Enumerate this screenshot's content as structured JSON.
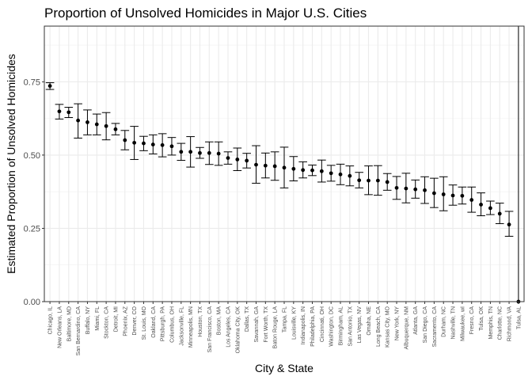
{
  "chart_data": {
    "type": "scatter",
    "title": "Proportion of Unsolved Homicides in Major U.S. Cities",
    "xlabel": "City & State",
    "ylabel": "Estimated Proportion of Unsolved Homicides",
    "ylim": [
      0,
      0.94
    ],
    "yticks": [
      0.0,
      0.25,
      0.5,
      0.75
    ],
    "ytick_labels": [
      "0.00",
      "0.25",
      "0.50",
      "0.75"
    ],
    "grid": true,
    "error_bars": true,
    "points": [
      {
        "city": "Chicago, IL",
        "estimate": 0.736,
        "lower": 0.724,
        "upper": 0.747
      },
      {
        "city": "New Orleans, LA",
        "estimate": 0.649,
        "lower": 0.623,
        "upper": 0.673
      },
      {
        "city": "Baltimore, MD",
        "estimate": 0.646,
        "lower": 0.628,
        "upper": 0.663
      },
      {
        "city": "San Bernardino, CA",
        "estimate": 0.618,
        "lower": 0.558,
        "upper": 0.675
      },
      {
        "city": "Buffalo, NY",
        "estimate": 0.612,
        "lower": 0.569,
        "upper": 0.654
      },
      {
        "city": "Miami, FL",
        "estimate": 0.605,
        "lower": 0.569,
        "upper": 0.64
      },
      {
        "city": "Stockton, CA",
        "estimate": 0.599,
        "lower": 0.552,
        "upper": 0.645
      },
      {
        "city": "Detroit, MI",
        "estimate": 0.588,
        "lower": 0.569,
        "upper": 0.608
      },
      {
        "city": "Phoenix, AZ",
        "estimate": 0.551,
        "lower": 0.518,
        "upper": 0.584
      },
      {
        "city": "Denver, CO",
        "estimate": 0.542,
        "lower": 0.485,
        "upper": 0.598
      },
      {
        "city": "St. Louis, MO",
        "estimate": 0.54,
        "lower": 0.515,
        "upper": 0.564
      },
      {
        "city": "Oakland, CA",
        "estimate": 0.536,
        "lower": 0.504,
        "upper": 0.569
      },
      {
        "city": "Pittsburgh, PA",
        "estimate": 0.534,
        "lower": 0.494,
        "upper": 0.573
      },
      {
        "city": "Columbus, OH",
        "estimate": 0.53,
        "lower": 0.5,
        "upper": 0.56
      },
      {
        "city": "Jacksonville, FL",
        "estimate": 0.511,
        "lower": 0.482,
        "upper": 0.54
      },
      {
        "city": "Minneapolis, MN",
        "estimate": 0.511,
        "lower": 0.459,
        "upper": 0.563
      },
      {
        "city": "Houston, TX",
        "estimate": 0.507,
        "lower": 0.489,
        "upper": 0.526
      },
      {
        "city": "San Francisco, CA",
        "estimate": 0.507,
        "lower": 0.468,
        "upper": 0.545
      },
      {
        "city": "Boston, MA",
        "estimate": 0.505,
        "lower": 0.465,
        "upper": 0.545
      },
      {
        "city": "Los Angeles, CA",
        "estimate": 0.49,
        "lower": 0.469,
        "upper": 0.511
      },
      {
        "city": "Oklahoma City, OK",
        "estimate": 0.485,
        "lower": 0.447,
        "upper": 0.524
      },
      {
        "city": "Dallas, TX",
        "estimate": 0.481,
        "lower": 0.456,
        "upper": 0.506
      },
      {
        "city": "Savannah, GA",
        "estimate": 0.467,
        "lower": 0.404,
        "upper": 0.532
      },
      {
        "city": "Fort Worth, TX",
        "estimate": 0.464,
        "lower": 0.422,
        "upper": 0.507
      },
      {
        "city": "Baton Rouge, LA",
        "estimate": 0.462,
        "lower": 0.414,
        "upper": 0.511
      },
      {
        "city": "Tampa, FL",
        "estimate": 0.457,
        "lower": 0.388,
        "upper": 0.527
      },
      {
        "city": "Louisville, KY",
        "estimate": 0.453,
        "lower": 0.412,
        "upper": 0.495
      },
      {
        "city": "Indianapolis, IN",
        "estimate": 0.449,
        "lower": 0.422,
        "upper": 0.477
      },
      {
        "city": "Philadelphia, PA",
        "estimate": 0.448,
        "lower": 0.43,
        "upper": 0.466
      },
      {
        "city": "Cincinnati, OH",
        "estimate": 0.445,
        "lower": 0.408,
        "upper": 0.483
      },
      {
        "city": "Washington, DC",
        "estimate": 0.438,
        "lower": 0.411,
        "upper": 0.465
      },
      {
        "city": "Birmingham, AL",
        "estimate": 0.434,
        "lower": 0.399,
        "upper": 0.469
      },
      {
        "city": "San Antonio, TX",
        "estimate": 0.429,
        "lower": 0.395,
        "upper": 0.463
      },
      {
        "city": "Las Vegas, NV",
        "estimate": 0.414,
        "lower": 0.388,
        "upper": 0.441
      },
      {
        "city": "Omaha, NE",
        "estimate": 0.413,
        "lower": 0.365,
        "upper": 0.463
      },
      {
        "city": "Long Beach, CA",
        "estimate": 0.413,
        "lower": 0.363,
        "upper": 0.464
      },
      {
        "city": "Kansas City, MO",
        "estimate": 0.408,
        "lower": 0.38,
        "upper": 0.437
      },
      {
        "city": "New York, NY",
        "estimate": 0.388,
        "lower": 0.349,
        "upper": 0.427
      },
      {
        "city": "Albuquerque, NM",
        "estimate": 0.386,
        "lower": 0.337,
        "upper": 0.438
      },
      {
        "city": "Atlanta, GA",
        "estimate": 0.383,
        "lower": 0.353,
        "upper": 0.415
      },
      {
        "city": "San Diego, CA",
        "estimate": 0.38,
        "lower": 0.335,
        "upper": 0.426
      },
      {
        "city": "Sacramento, CA",
        "estimate": 0.37,
        "lower": 0.321,
        "upper": 0.421
      },
      {
        "city": "Durham, NC",
        "estimate": 0.366,
        "lower": 0.31,
        "upper": 0.426
      },
      {
        "city": "Nashville, TN",
        "estimate": 0.362,
        "lower": 0.329,
        "upper": 0.398
      },
      {
        "city": "Milwaukee, wI",
        "estimate": 0.361,
        "lower": 0.333,
        "upper": 0.391
      },
      {
        "city": "Fresno, CA",
        "estimate": 0.347,
        "lower": 0.305,
        "upper": 0.391
      },
      {
        "city": "Tulsa, OK",
        "estimate": 0.331,
        "lower": 0.293,
        "upper": 0.371
      },
      {
        "city": "Memphis, TN",
        "estimate": 0.319,
        "lower": 0.297,
        "upper": 0.343
      },
      {
        "city": "Charlotte, NC",
        "estimate": 0.3,
        "lower": 0.266,
        "upper": 0.336
      },
      {
        "city": "Richmond, VA",
        "estimate": 0.263,
        "lower": 0.223,
        "upper": 0.308
      },
      {
        "city": "Tulsa, AL",
        "estimate": 0.0,
        "lower": 0.0,
        "upper": 0.945
      }
    ]
  }
}
